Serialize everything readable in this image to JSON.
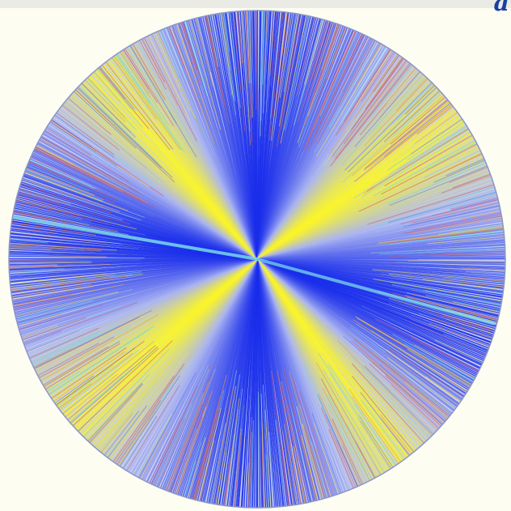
{
  "corner_text": "a"
}
